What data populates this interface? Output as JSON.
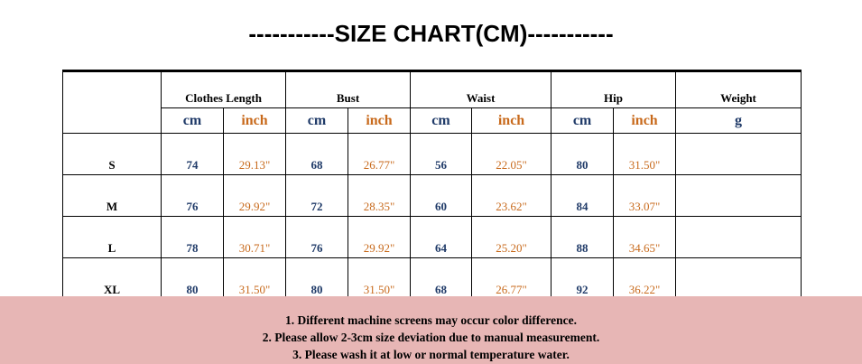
{
  "header": {
    "title": "-----------SIZE CHART(CM)-----------"
  },
  "table": {
    "groups": [
      "Clothes Length",
      "Bust",
      "Waist",
      "Hip",
      "Weight"
    ],
    "units": [
      "cm",
      "inch",
      "cm",
      "inch",
      "cm",
      "inch",
      "cm",
      "inch",
      "g"
    ],
    "rows": [
      [
        "S",
        "74",
        "29.13\"",
        "68",
        "26.77\"",
        "56",
        "22.05\"",
        "80",
        "31.50\""
      ],
      [
        "M",
        "76",
        "29.92\"",
        "72",
        "28.35\"",
        "60",
        "23.62\"",
        "84",
        "33.07\""
      ],
      [
        "L",
        "78",
        "30.71\"",
        "76",
        "29.92\"",
        "64",
        "25.20\"",
        "88",
        "34.65\""
      ],
      [
        "XL",
        "80",
        "31.50\"",
        "80",
        "31.50\"",
        "68",
        "26.77\"",
        "92",
        "36.22\""
      ]
    ]
  },
  "notes": [
    "1. Different machine screens may occur color difference.",
    "2. Please allow 2-3cm size deviation due to manual measurement.",
    "3. Please wash it at low or normal temperature water."
  ]
}
